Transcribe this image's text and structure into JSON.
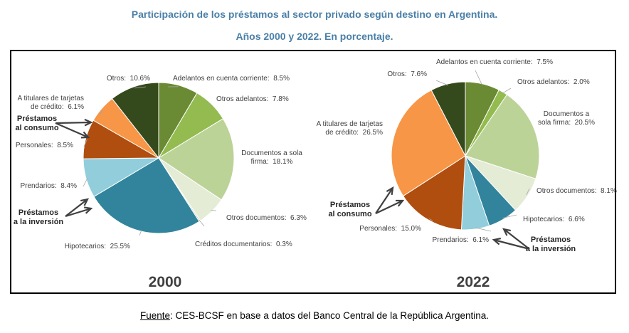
{
  "title_line1": "Participación de los préstamos al sector privado según destino en Argentina.",
  "title_line2": "Años 2000 y 2022. En porcentaje.",
  "source_label": "Fuente",
  "source_text": ": CES-BCSF en base a datos del Banco Central de la República Argentina.",
  "chart_data": [
    {
      "type": "pie",
      "title": "2000",
      "slices": [
        {
          "label": "Adelantos en cuenta corriente:",
          "value": 8.5,
          "color": "#6b8a34"
        },
        {
          "label": "Otros adelantos:",
          "value": 7.8,
          "color": "#93bb4f"
        },
        {
          "label": "Documentos a sola firma:",
          "value": 18.1,
          "color": "#bcd398"
        },
        {
          "label": "Otros documentos:",
          "value": 6.3,
          "color": "#e5ecd6"
        },
        {
          "label": "Créditos documentarios:",
          "value": 0.3,
          "color": "#c6d6b0"
        },
        {
          "label": "Hipotecarios:",
          "value": 25.5,
          "color": "#31849b"
        },
        {
          "label": "Prendarios:",
          "value": 8.4,
          "color": "#92cddc"
        },
        {
          "label": "Personales:",
          "value": 8.5,
          "color": "#b04e0f"
        },
        {
          "label": "A titulares de tarjetas de crédito:",
          "value": 6.1,
          "color": "#f79646"
        },
        {
          "label": "Otros:",
          "value": 10.6,
          "color": "#344a1c"
        }
      ],
      "annotations": [
        "Préstamos al consumo",
        "Préstamos a la inversión"
      ]
    },
    {
      "type": "pie",
      "title": "2022",
      "slices": [
        {
          "label": "Adelantos en cuenta corriente:",
          "value": 7.5,
          "color": "#6b8a34"
        },
        {
          "label": "Otros adelantos:",
          "value": 2.0,
          "color": "#93bb4f"
        },
        {
          "label": "Documentos a sola firma:",
          "value": 20.5,
          "color": "#bcd398"
        },
        {
          "label": "Otros documentos:",
          "value": 8.1,
          "color": "#e5ecd6"
        },
        {
          "label": "Hipotecarios:",
          "value": 6.6,
          "color": "#31849b"
        },
        {
          "label": "Prendarios:",
          "value": 6.1,
          "color": "#92cddc"
        },
        {
          "label": "Personales:",
          "value": 15.0,
          "color": "#b04e0f"
        },
        {
          "label": "A titulares de tarjetas de crédito:",
          "value": 26.5,
          "color": "#f79646"
        },
        {
          "label": "Otros:",
          "value": 7.6,
          "color": "#344a1c"
        }
      ],
      "annotations": [
        "Préstamos al consumo",
        "Préstamos a la inversión"
      ]
    }
  ]
}
